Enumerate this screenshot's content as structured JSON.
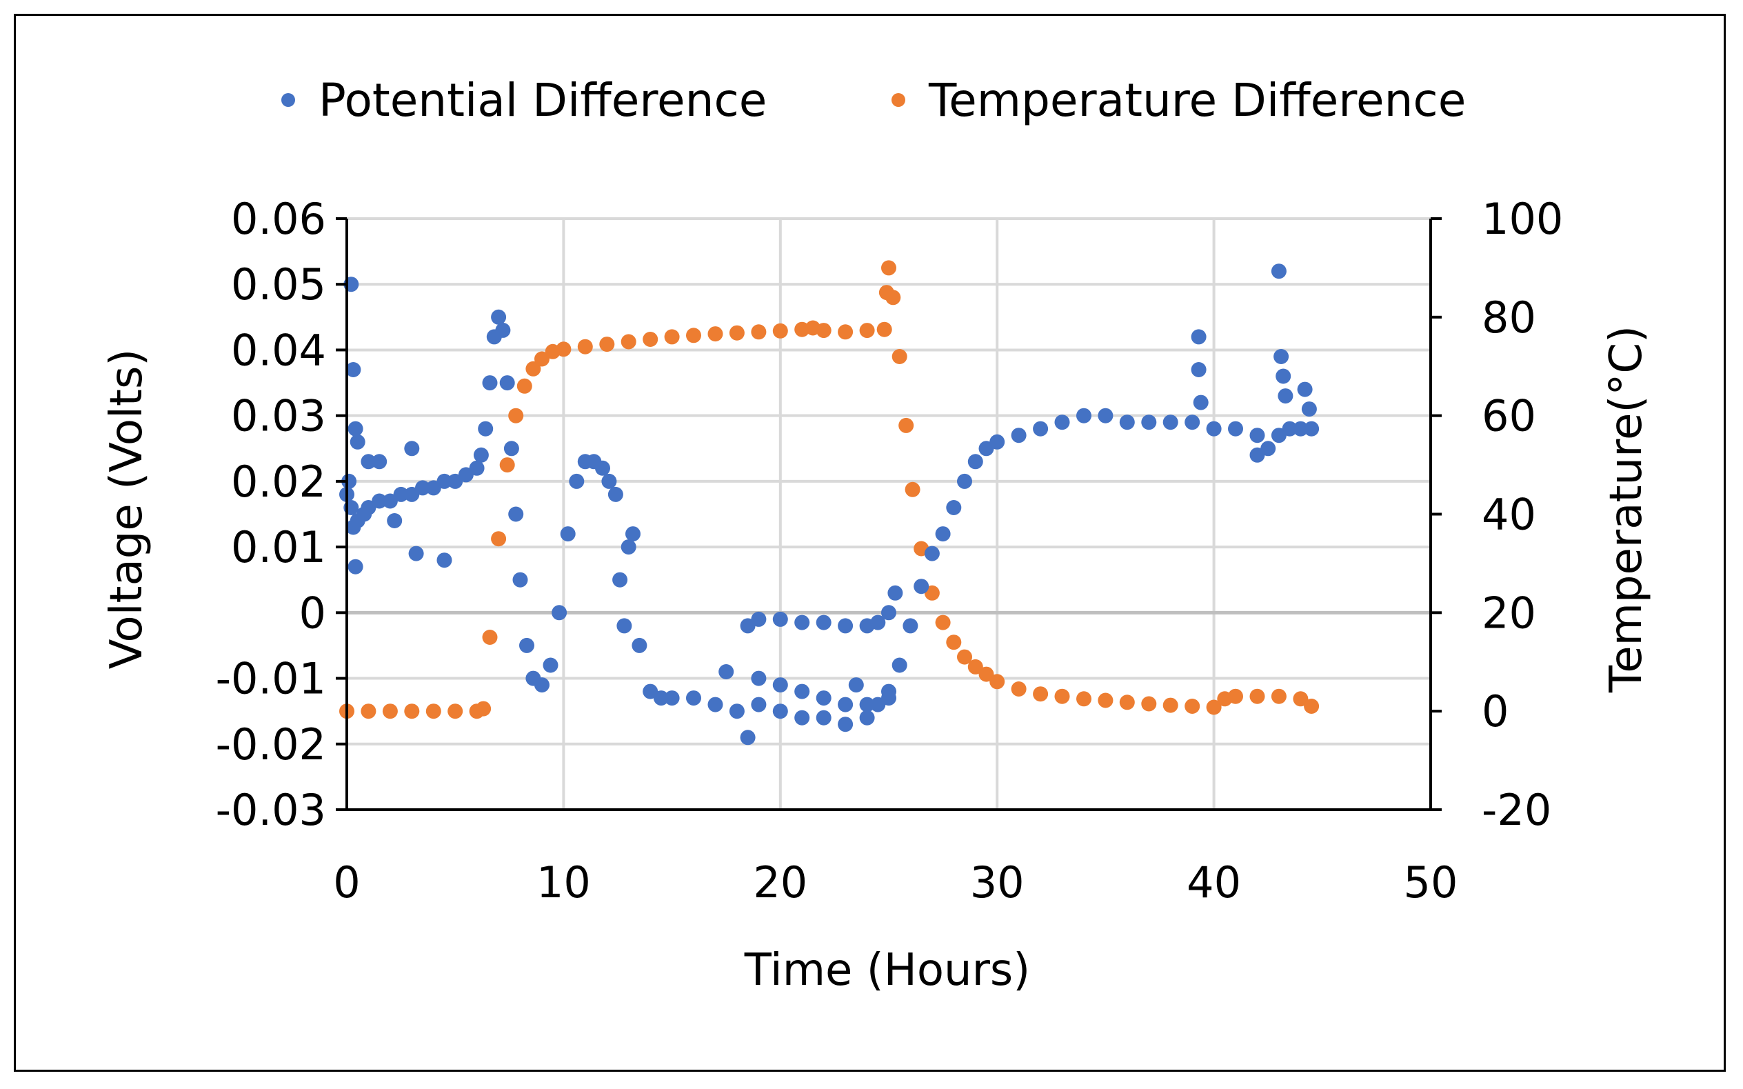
{
  "chart_data": {
    "type": "scatter",
    "title": "",
    "xlabel": "Time (Hours)",
    "ylabel": "Voltage (Volts)",
    "y2label": "Temperature(°C)",
    "xlim": [
      0,
      50
    ],
    "ylim": [
      -0.03,
      0.06
    ],
    "y2lim": [
      -20,
      100
    ],
    "xticks": [
      0,
      10,
      20,
      30,
      40,
      50
    ],
    "yticks": [
      -0.03,
      -0.02,
      -0.01,
      0,
      0.01,
      0.02,
      0.03,
      0.04,
      0.05,
      0.06
    ],
    "y2ticks": [
      -20,
      0,
      20,
      40,
      60,
      80,
      100
    ],
    "grid": true,
    "legend_position": "top",
    "series": [
      {
        "name": "Potential Difference",
        "axis": "left",
        "color": "#4472C4",
        "x": [
          0.0,
          0.1,
          0.2,
          0.3,
          0.5,
          0.8,
          1.0,
          1.5,
          2.0,
          2.5,
          3.0,
          3.5,
          4.0,
          4.5,
          5.0,
          5.5,
          6.0,
          6.2,
          6.4,
          6.6,
          6.8,
          7.0,
          7.2,
          7.4,
          7.6,
          7.8,
          8.0,
          8.3,
          8.6,
          9.0,
          9.4,
          9.8,
          10.2,
          10.6,
          11.0,
          11.4,
          11.8,
          12.1,
          12.4,
          12.6,
          12.8,
          13.0,
          13.2,
          13.5,
          14.0,
          14.5,
          15.0,
          16.0,
          17.0,
          18.0,
          19.0,
          20.0,
          21.0,
          22.0,
          23.0,
          24.0,
          24.5,
          25.0,
          25.5,
          26.0,
          26.5,
          27.0,
          27.5,
          28.0,
          28.5,
          29.0,
          29.5,
          30.0,
          31.0,
          32.0,
          33.0,
          34.0,
          35.0,
          36.0,
          37.0,
          38.0,
          39.0,
          40.0,
          41.0,
          42.0,
          43.0,
          43.5,
          44.0,
          44.5,
          0.2,
          0.3,
          0.4,
          0.5,
          1.0,
          1.5,
          2.2,
          3.0,
          3.2,
          4.5,
          0.4,
          18.5,
          19.0,
          20.0,
          21.0,
          22.0,
          23.0,
          24.0,
          24.5,
          25.0,
          25.3,
          19.0,
          20.0,
          21.0,
          22.0,
          23.0,
          24.0,
          25.0,
          39.3,
          39.3,
          39.4,
          43.0,
          43.1,
          43.2,
          43.3,
          44.2,
          44.4,
          42.5,
          42.0,
          23.5,
          17.5,
          18.5
        ],
        "y": [
          0.018,
          0.02,
          0.016,
          0.013,
          0.014,
          0.015,
          0.016,
          0.017,
          0.017,
          0.018,
          0.018,
          0.019,
          0.019,
          0.02,
          0.02,
          0.021,
          0.022,
          0.024,
          0.028,
          0.035,
          0.042,
          0.045,
          0.043,
          0.035,
          0.025,
          0.015,
          0.005,
          -0.005,
          -0.01,
          -0.011,
          -0.008,
          0.0,
          0.012,
          0.02,
          0.023,
          0.023,
          0.022,
          0.02,
          0.018,
          0.005,
          -0.002,
          0.01,
          0.012,
          -0.005,
          -0.012,
          -0.013,
          -0.013,
          -0.013,
          -0.014,
          -0.015,
          -0.014,
          -0.015,
          -0.016,
          -0.016,
          -0.017,
          -0.016,
          -0.014,
          -0.012,
          -0.008,
          -0.002,
          0.004,
          0.009,
          0.012,
          0.016,
          0.02,
          0.023,
          0.025,
          0.026,
          0.027,
          0.028,
          0.029,
          0.03,
          0.03,
          0.029,
          0.029,
          0.029,
          0.029,
          0.028,
          0.028,
          0.027,
          0.027,
          0.028,
          0.028,
          0.028,
          0.05,
          0.037,
          0.028,
          0.026,
          0.023,
          0.023,
          0.014,
          0.025,
          0.009,
          0.008,
          0.007,
          -0.002,
          -0.001,
          -0.001,
          -0.0015,
          -0.0015,
          -0.002,
          -0.002,
          -0.0015,
          0.0,
          0.003,
          -0.01,
          -0.011,
          -0.012,
          -0.013,
          -0.014,
          -0.014,
          -0.013,
          0.042,
          0.037,
          0.032,
          0.052,
          0.039,
          0.036,
          0.033,
          0.034,
          0.031,
          0.025,
          0.024,
          -0.011,
          -0.009,
          -0.019
        ]
      },
      {
        "name": "Temperature Difference",
        "axis": "right",
        "color": "#ED7D31",
        "x": [
          0.0,
          1.0,
          2.0,
          3.0,
          4.0,
          5.0,
          6.0,
          6.3,
          6.6,
          7.0,
          7.4,
          7.8,
          8.2,
          8.6,
          9.0,
          9.5,
          10.0,
          11.0,
          12.0,
          13.0,
          14.0,
          15.0,
          16.0,
          17.0,
          18.0,
          19.0,
          20.0,
          21.0,
          21.5,
          22.0,
          23.0,
          24.0,
          24.8,
          24.9,
          25.0,
          25.2,
          25.5,
          25.8,
          26.1,
          26.5,
          27.0,
          27.5,
          28.0,
          28.5,
          29.0,
          29.5,
          30.0,
          31.0,
          32.0,
          33.0,
          34.0,
          35.0,
          36.0,
          37.0,
          38.0,
          39.0,
          40.0,
          40.5,
          41.0,
          42.0,
          43.0,
          44.0,
          44.5
        ],
        "y": [
          0.0,
          0.0,
          0.0,
          0.0,
          0.0,
          0.0,
          0.0,
          0.5,
          15.0,
          35.0,
          50.0,
          60.0,
          66.0,
          69.5,
          71.5,
          73.0,
          73.5,
          74.0,
          74.5,
          75.0,
          75.5,
          76.0,
          76.3,
          76.6,
          76.8,
          77.0,
          77.2,
          77.5,
          77.8,
          77.3,
          77.0,
          77.3,
          77.5,
          85.0,
          90.0,
          84.0,
          72.0,
          58.0,
          45.0,
          33.0,
          24.0,
          18.0,
          14.0,
          11.0,
          9.0,
          7.5,
          6.0,
          4.5,
          3.5,
          3.0,
          2.5,
          2.2,
          1.8,
          1.5,
          1.2,
          1.0,
          0.8,
          2.5,
          3.0,
          3.0,
          3.0,
          2.5,
          1.0
        ]
      }
    ]
  }
}
